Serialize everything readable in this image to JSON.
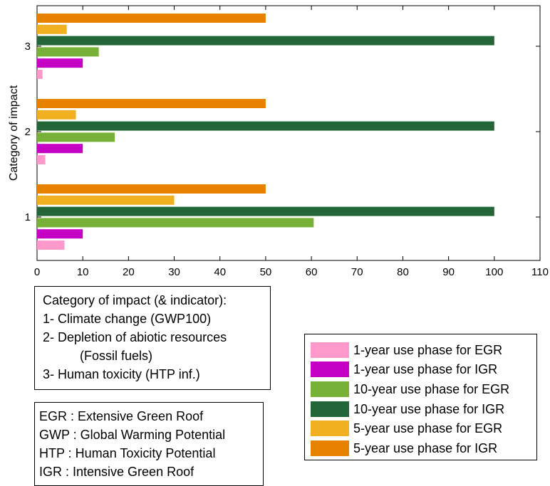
{
  "chart_data": {
    "type": "bar",
    "orientation": "horizontal",
    "categories": [
      "1",
      "2",
      "3"
    ],
    "ylabel": "Category of impact",
    "xlim": [
      0,
      110
    ],
    "xticks": [
      0,
      10,
      20,
      30,
      40,
      50,
      60,
      70,
      80,
      90,
      100,
      110
    ],
    "series": [
      {
        "name": "1-year use phase for EGR",
        "color": "#ff99cc",
        "values": [
          6,
          1.8,
          1.2
        ]
      },
      {
        "name": "1-year use phase for IGR",
        "color": "#c300c3",
        "values": [
          10,
          10,
          10
        ]
      },
      {
        "name": "10-year use phase for EGR",
        "color": "#77b137",
        "values": [
          60.5,
          17,
          13.5
        ]
      },
      {
        "name": "10-year use phase for IGR",
        "color": "#236638",
        "values": [
          100,
          100,
          100
        ]
      },
      {
        "name": "5-year use phase for EGR",
        "color": "#f0b020",
        "values": [
          30,
          8.5,
          6.5
        ]
      },
      {
        "name": "5-year use phase for IGR",
        "color": "#e68200",
        "values": [
          50,
          50,
          50
        ]
      }
    ],
    "grid": false,
    "legend_position": "bottom-right, outside"
  },
  "categories_note": {
    "heading": "Category of impact (& indicator):",
    "items": [
      "1- Climate change (GWP100)",
      "2- Depletion of abiotic resources",
      "(Fossil fuels)",
      "3- Human toxicity (HTP inf.)"
    ]
  },
  "abbreviations": [
    "EGR : Extensive Green Roof",
    "GWP : Global Warming Potential",
    "HTP : Human Toxicity Potential",
    "IGR : Intensive Green Roof"
  ]
}
